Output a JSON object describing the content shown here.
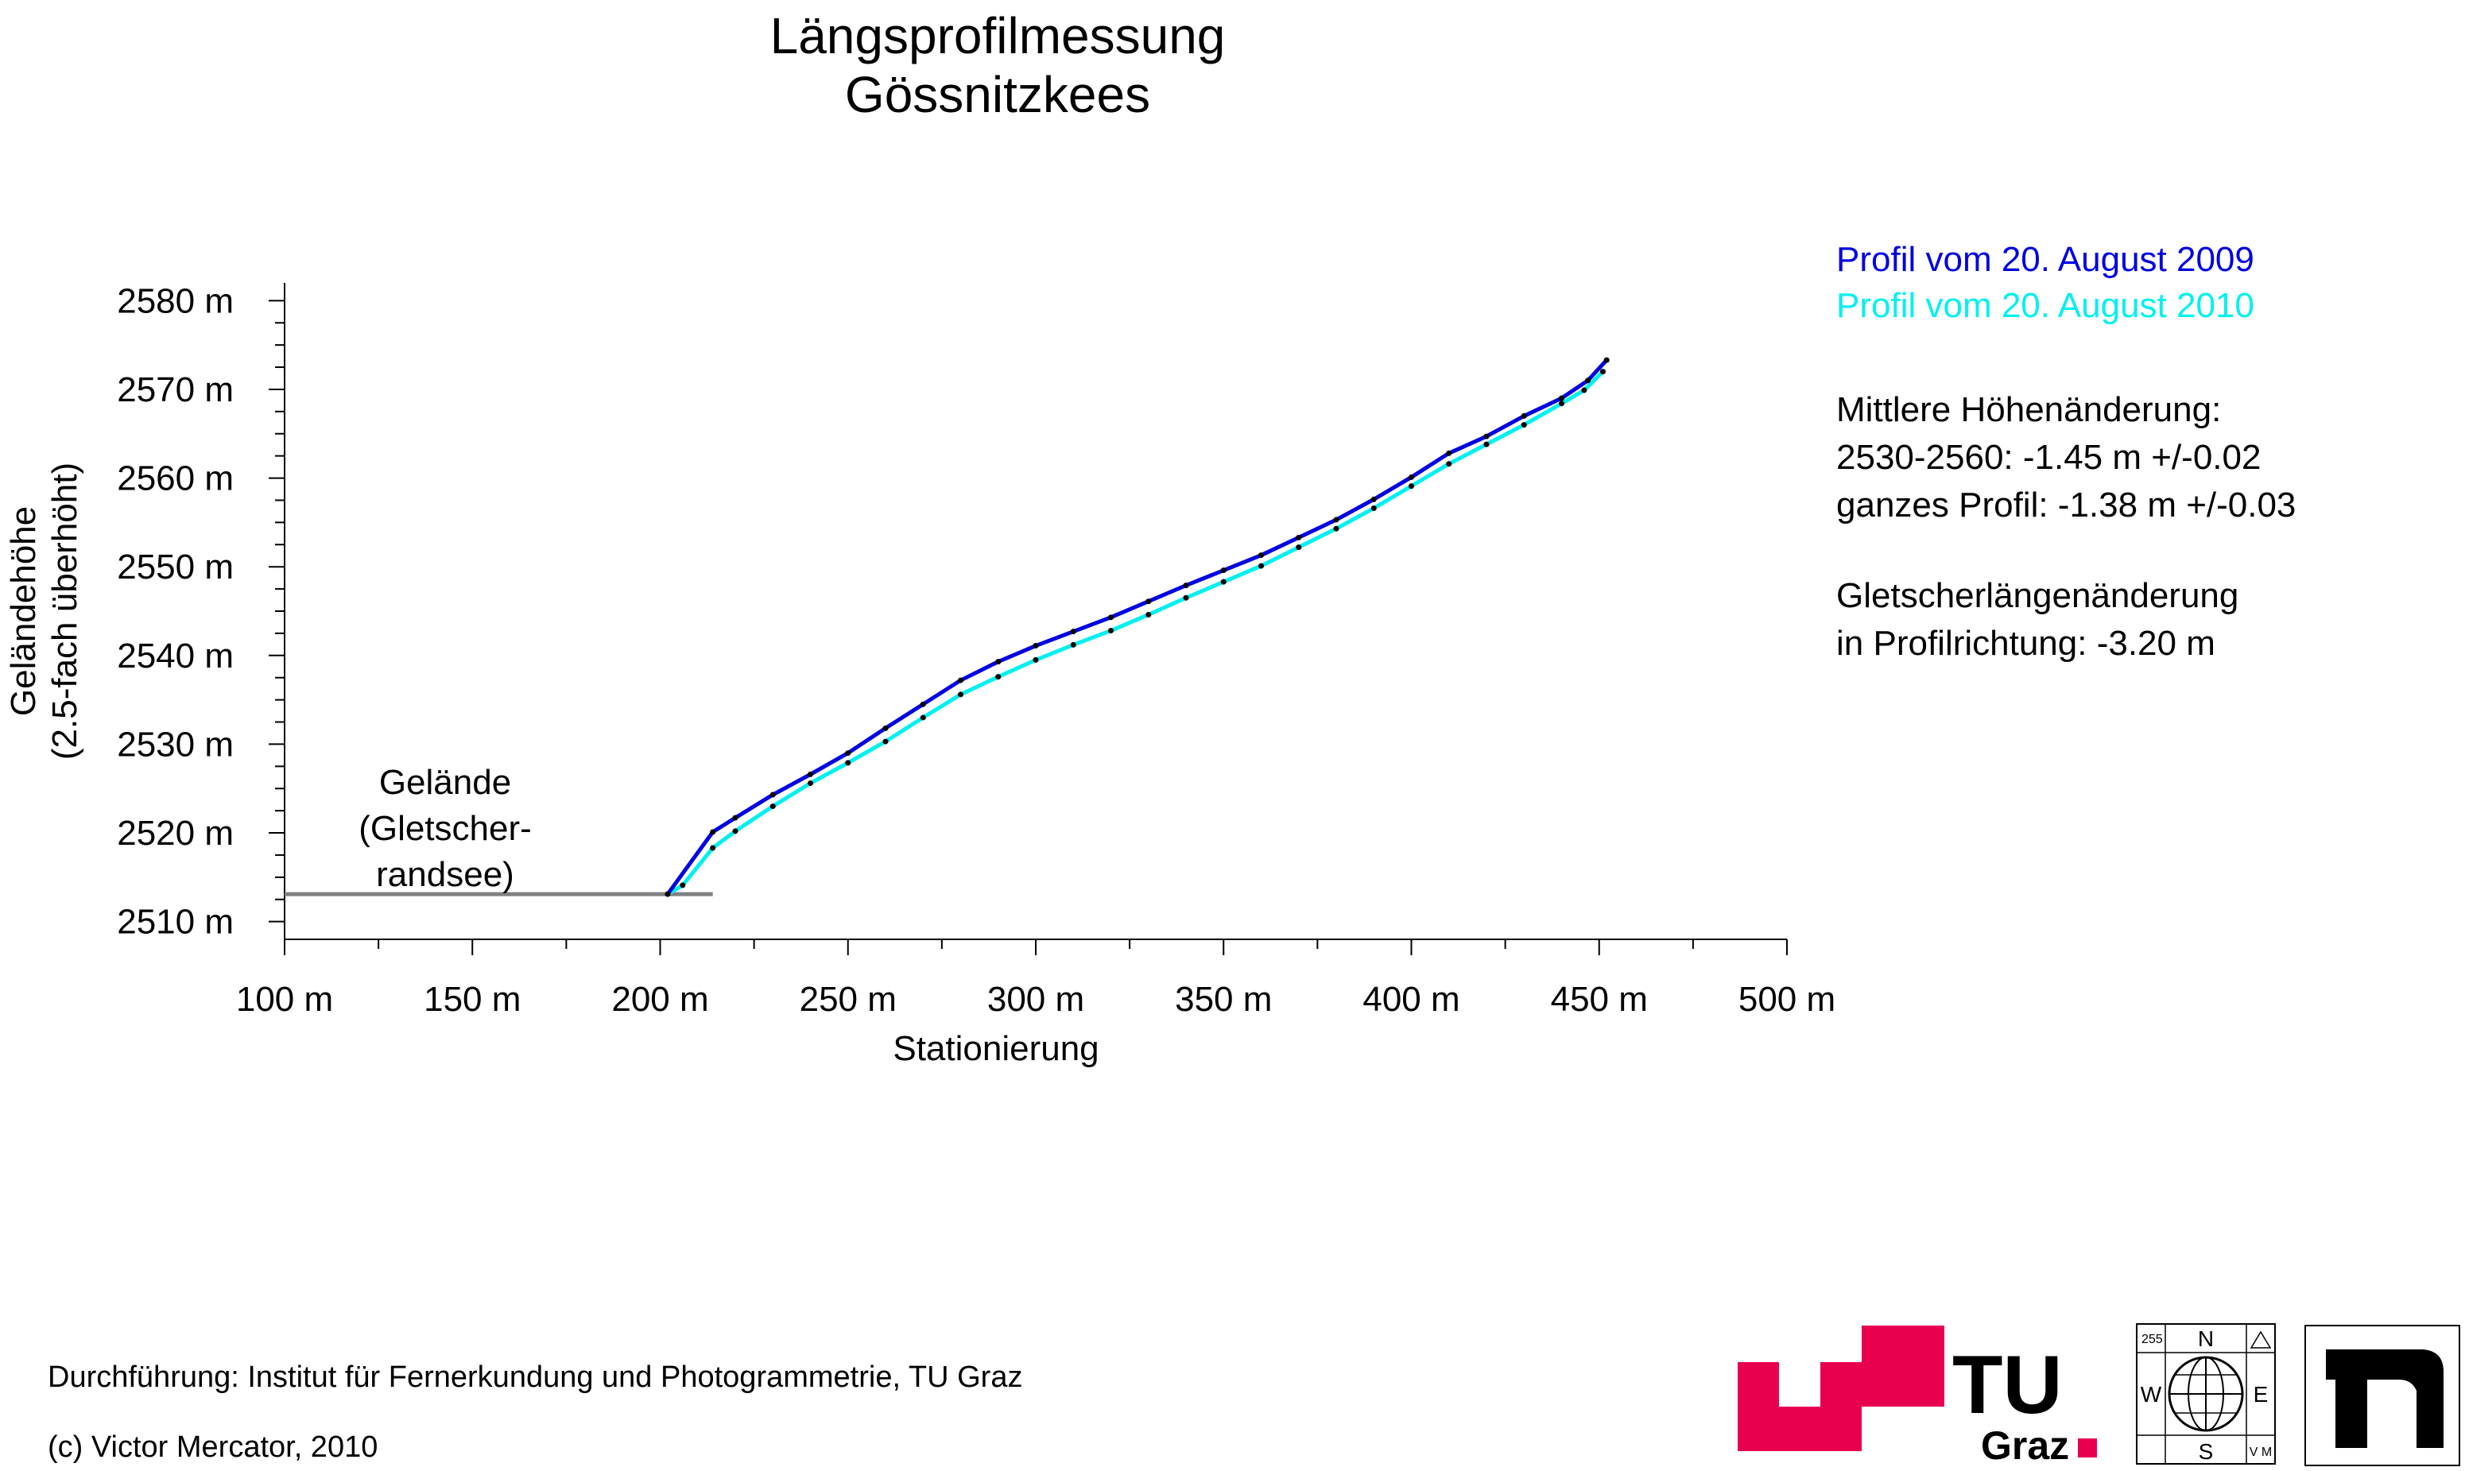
{
  "title_lines": [
    "Längsprofilmessung",
    "Gössnitzkees"
  ],
  "legend": [
    {
      "label": "Profil vom 20. August 2009",
      "color": "#0000e0"
    },
    {
      "label": "Profil vom 20. August 2010",
      "color": "#00f0f0"
    }
  ],
  "stats": {
    "mean_heading": "Mittlere Höhenänderung:",
    "mean_range": "2530-2560: -1.45 m  +/-0.02",
    "mean_full": "ganzes Profil: -1.38 m  +/-0.03",
    "length_heading": "Gletscherlängenänderung",
    "length_value": "in Profilrichtung: -3.20 m"
  },
  "terrain_label": [
    "Gelände",
    "(Gletscher-",
    "randsee)"
  ],
  "footer": {
    "credit": "Durchführung: Institut für Fernerkundung und Photogrammetrie, TU Graz",
    "copyright": "(c) Victor Mercator, 2010"
  },
  "logos": {
    "tu_text": "TU",
    "graz_text": "Graz",
    "tu_color": "#e8004f",
    "compass_n": "N",
    "compass_s": "S",
    "compass_w": "W",
    "compass_e": "E",
    "compass_corner": "255",
    "compass_corner_br": "V M"
  },
  "chart_data": {
    "type": "line",
    "xlabel": "Stationierung",
    "ylabel_lines": [
      "Geländehöhe",
      "(2.5-fach überhöht)"
    ],
    "xlim": [
      100,
      500
    ],
    "ylim": [
      2508,
      2582
    ],
    "x_ticks": [
      {
        "value": 100,
        "label": "100 m"
      },
      {
        "value": 150,
        "label": "150 m"
      },
      {
        "value": 200,
        "label": "200 m"
      },
      {
        "value": 250,
        "label": "250 m"
      },
      {
        "value": 300,
        "label": "300 m"
      },
      {
        "value": 350,
        "label": "350 m"
      },
      {
        "value": 400,
        "label": "400 m"
      },
      {
        "value": 450,
        "label": "450 m"
      },
      {
        "value": 500,
        "label": "500 m"
      }
    ],
    "y_ticks": [
      {
        "value": 2510,
        "label": "2510 m"
      },
      {
        "value": 2520,
        "label": "2520 m"
      },
      {
        "value": 2530,
        "label": "2530 m"
      },
      {
        "value": 2540,
        "label": "2540 m"
      },
      {
        "value": 2550,
        "label": "2550 m"
      },
      {
        "value": 2560,
        "label": "2560 m"
      },
      {
        "value": 2570,
        "label": "2570 m"
      },
      {
        "value": 2580,
        "label": "2580 m"
      }
    ],
    "series": [
      {
        "name": "Profil vom 20. August 2009",
        "color": "#0000e0",
        "points": [
          [
            202,
            2513.1
          ],
          [
            214,
            2520.1
          ],
          [
            220,
            2521.7
          ],
          [
            230,
            2524.3
          ],
          [
            240,
            2526.6
          ],
          [
            250,
            2529.0
          ],
          [
            260,
            2531.8
          ],
          [
            270,
            2534.5
          ],
          [
            280,
            2537.2
          ],
          [
            290,
            2539.3
          ],
          [
            300,
            2541.1
          ],
          [
            310,
            2542.7
          ],
          [
            320,
            2544.3
          ],
          [
            330,
            2546.1
          ],
          [
            340,
            2547.9
          ],
          [
            350,
            2549.6
          ],
          [
            360,
            2551.3
          ],
          [
            370,
            2553.3
          ],
          [
            380,
            2555.3
          ],
          [
            390,
            2557.6
          ],
          [
            400,
            2560.1
          ],
          [
            410,
            2562.8
          ],
          [
            420,
            2564.7
          ],
          [
            430,
            2567.0
          ],
          [
            440,
            2569.0
          ],
          [
            447,
            2571.0
          ],
          [
            452,
            2573.3
          ]
        ]
      },
      {
        "name": "Profil vom 20. August 2010",
        "color": "#00f0f0",
        "points": [
          [
            202,
            2513.1
          ],
          [
            206,
            2514.1
          ],
          [
            214,
            2518.3
          ],
          [
            220,
            2520.2
          ],
          [
            230,
            2523.0
          ],
          [
            240,
            2525.6
          ],
          [
            250,
            2527.9
          ],
          [
            260,
            2530.3
          ],
          [
            270,
            2533.0
          ],
          [
            280,
            2535.6
          ],
          [
            290,
            2537.6
          ],
          [
            300,
            2539.5
          ],
          [
            310,
            2541.2
          ],
          [
            320,
            2542.8
          ],
          [
            330,
            2544.6
          ],
          [
            340,
            2546.5
          ],
          [
            350,
            2548.3
          ],
          [
            360,
            2550.1
          ],
          [
            370,
            2552.2
          ],
          [
            380,
            2554.3
          ],
          [
            390,
            2556.6
          ],
          [
            400,
            2559.1
          ],
          [
            410,
            2561.6
          ],
          [
            420,
            2563.8
          ],
          [
            430,
            2566.0
          ],
          [
            440,
            2568.4
          ],
          [
            446,
            2569.9
          ],
          [
            451,
            2572.0
          ]
        ]
      }
    ],
    "terrain_line": {
      "color": "#808080",
      "points": [
        [
          100,
          2513.1
        ],
        [
          214,
          2513.1
        ]
      ]
    }
  }
}
